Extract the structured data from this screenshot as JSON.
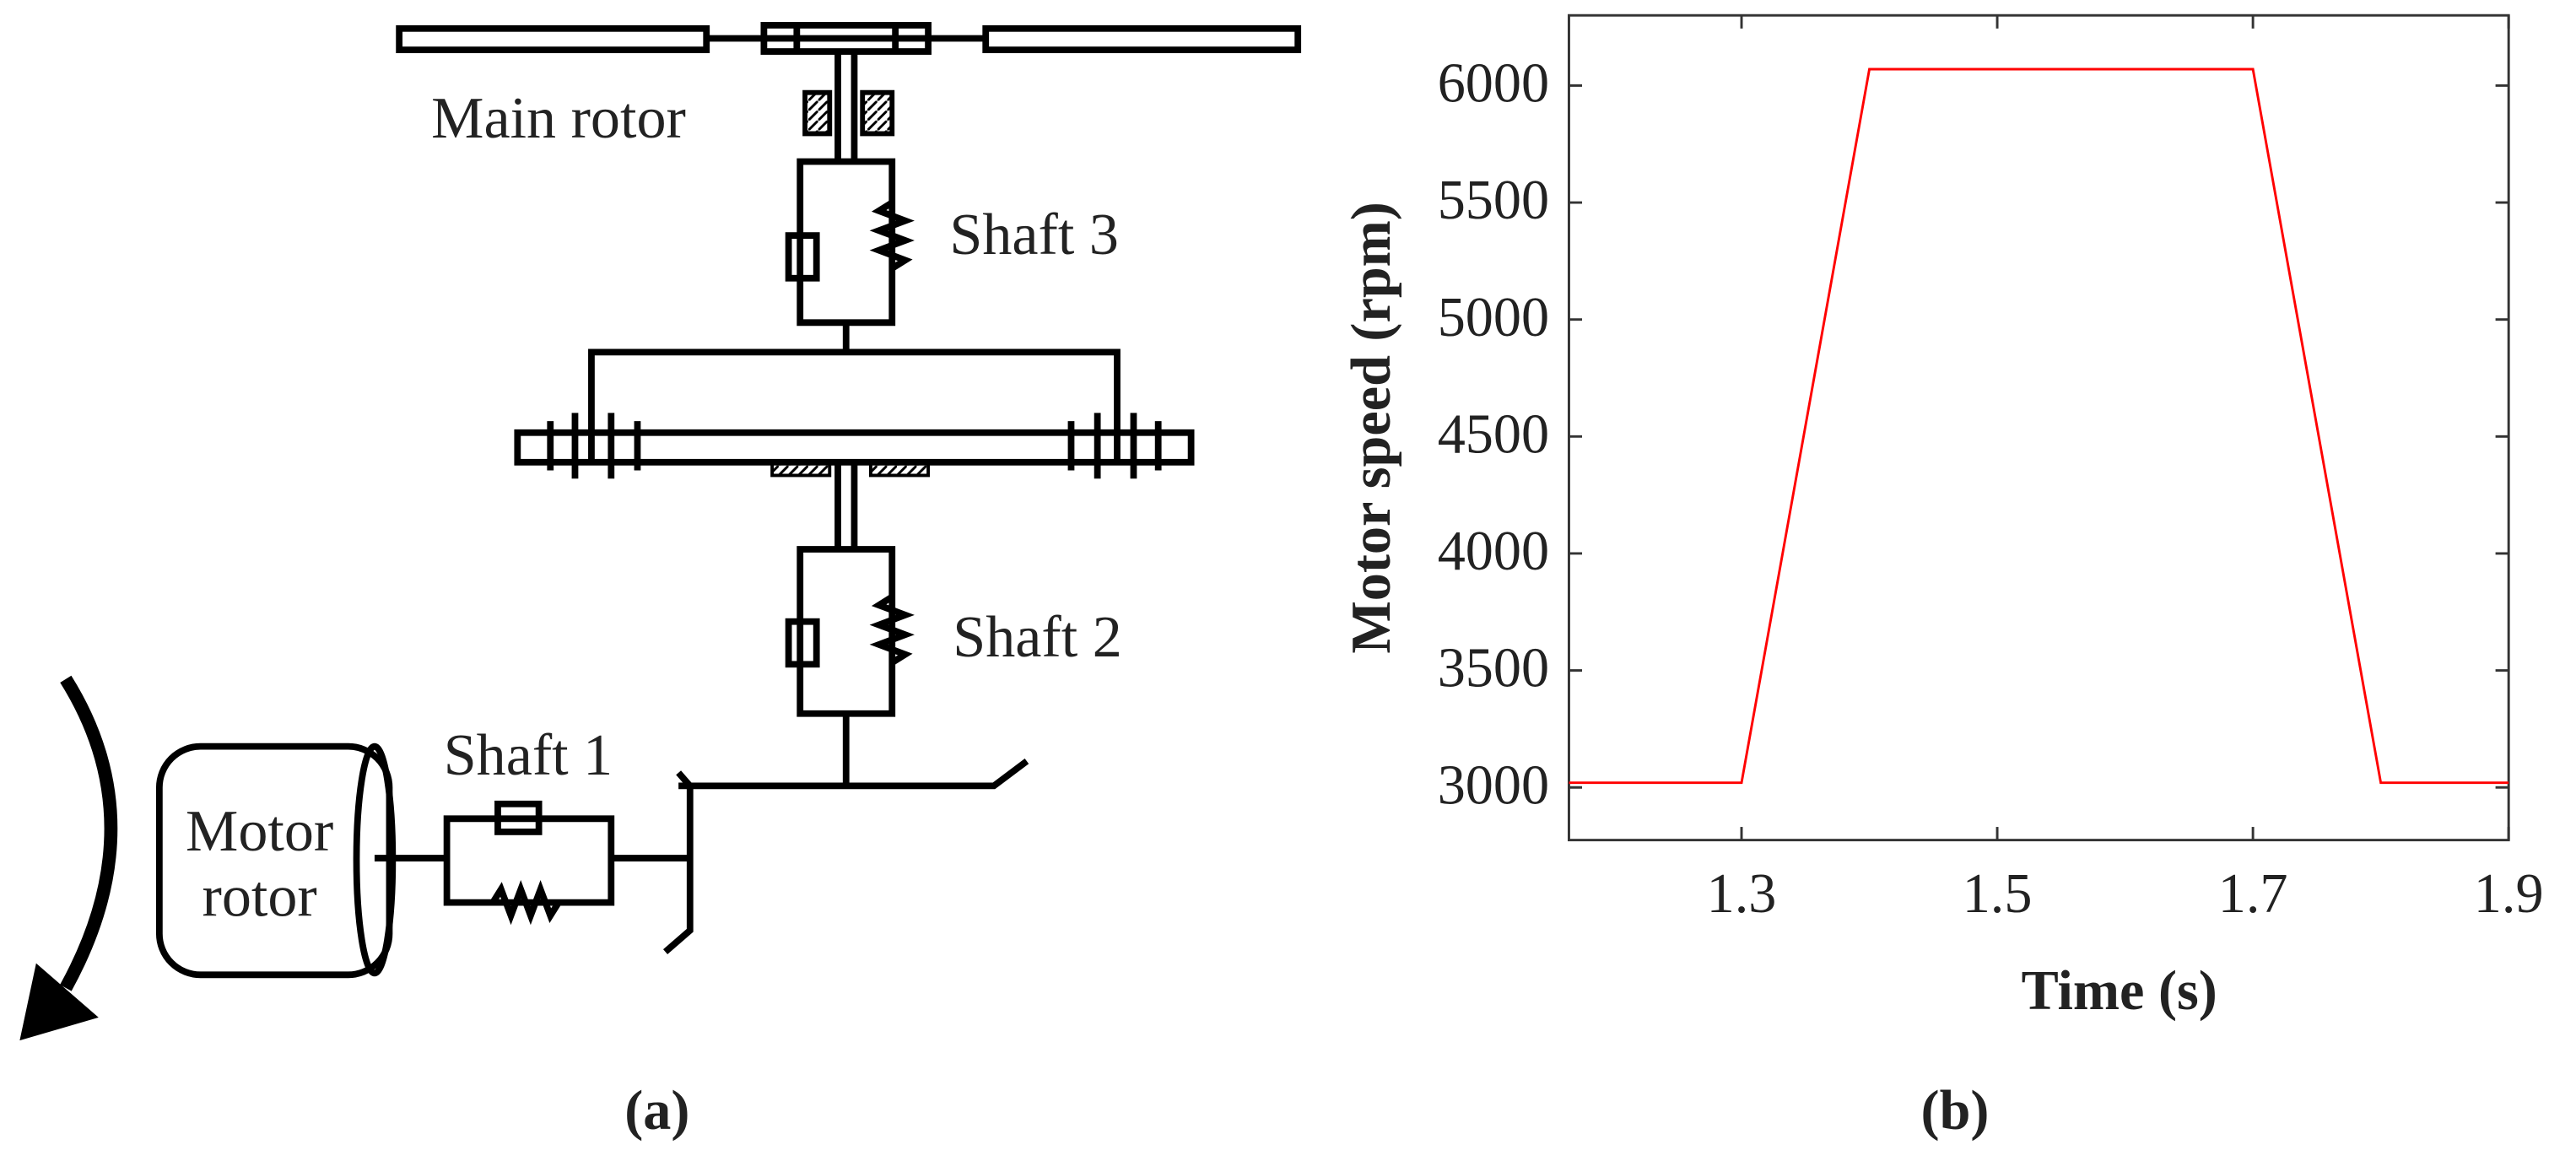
{
  "diagram": {
    "main_rotor": "Main rotor",
    "shaft_3": "Shaft 3",
    "shaft_2": "Shaft 2",
    "shaft_1": "Shaft 1",
    "motor_rotor": [
      "Motor",
      "rotor"
    ],
    "panel_label": "(a)"
  },
  "panel_b_label": "(b)",
  "chart_data": {
    "type": "line",
    "xlabel": "Time (s)",
    "ylabel": "Motor speed  (rpm)",
    "x": [
      1.165,
      1.3,
      1.4,
      1.7,
      1.8,
      1.9
    ],
    "series": [
      {
        "name": "Motor speed",
        "color": "#ff0000",
        "values": [
          3020,
          3020,
          6070,
          6070,
          3020,
          3020
        ]
      }
    ],
    "xlim": [
      1.165,
      1.9
    ],
    "xticks": [
      1.3,
      1.5,
      1.7,
      1.9
    ],
    "ylim": [
      2775,
      6300
    ],
    "yticks": [
      3000,
      3500,
      4000,
      4500,
      5000,
      5500,
      6000
    ],
    "grid": false
  }
}
